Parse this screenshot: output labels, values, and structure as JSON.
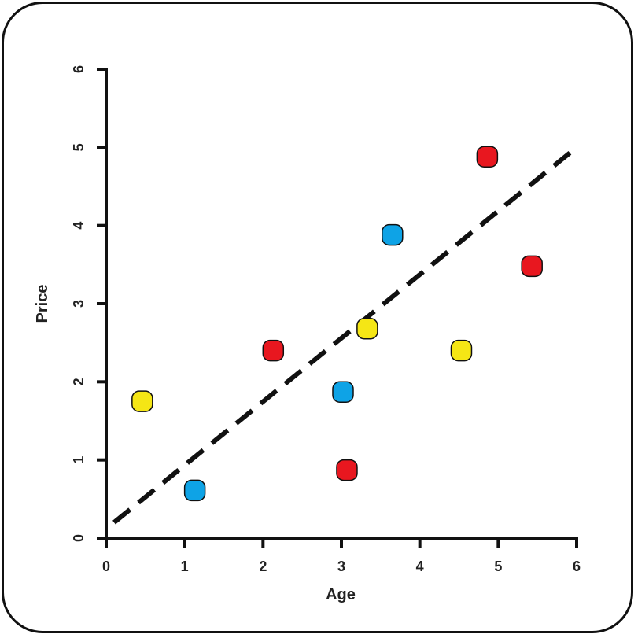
{
  "chart_data": {
    "type": "scatter",
    "title": "",
    "xlabel": "Age",
    "ylabel": "Price",
    "xlim": [
      0,
      6
    ],
    "ylim": [
      0,
      6
    ],
    "xticks": [
      "0",
      "1",
      "2",
      "3",
      "4",
      "5",
      "6"
    ],
    "yticks": [
      "0",
      "1",
      "2",
      "3",
      "4",
      "5",
      "6"
    ],
    "grid": false,
    "colors": {
      "red": "#e8171f",
      "blue": "#0ea3e6",
      "yellow": "#f5e615",
      "axis": "#111111",
      "trend": "#111111"
    },
    "points": [
      {
        "x": 0.46,
        "y": 1.75,
        "color": "yellow"
      },
      {
        "x": 1.13,
        "y": 0.61,
        "color": "blue"
      },
      {
        "x": 2.13,
        "y": 2.4,
        "color": "red"
      },
      {
        "x": 3.02,
        "y": 1.87,
        "color": "blue"
      },
      {
        "x": 3.07,
        "y": 0.87,
        "color": "red"
      },
      {
        "x": 3.33,
        "y": 2.68,
        "color": "yellow"
      },
      {
        "x": 3.65,
        "y": 3.88,
        "color": "blue"
      },
      {
        "x": 4.53,
        "y": 2.4,
        "color": "yellow"
      },
      {
        "x": 4.86,
        "y": 4.88,
        "color": "red"
      },
      {
        "x": 5.43,
        "y": 3.48,
        "color": "red"
      }
    ],
    "trendline": {
      "style": "dashed",
      "from": {
        "x": 0.1,
        "y": 0.2
      },
      "to": {
        "x": 6.0,
        "y": 5.0
      }
    }
  }
}
